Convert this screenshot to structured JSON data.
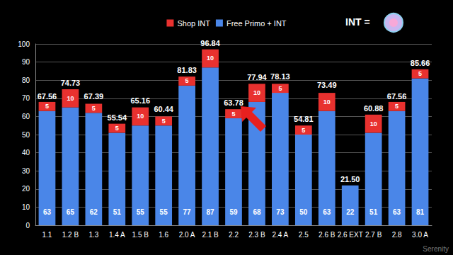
{
  "chart_data": {
    "type": "bar",
    "stacked": true,
    "data_labels": true,
    "grid": true,
    "legend": "top",
    "categories": [
      "1.1",
      "1.2 B",
      "1.3",
      "1.4 A",
      "1.5 B",
      "1.6",
      "2.0 A",
      "2.1 B",
      "2.2",
      "2.3 B",
      "2.4 A",
      "2.5",
      "2.6 B",
      "2.6 EXT",
      "2.7 B",
      "2.8",
      "3.0 A"
    ],
    "series": [
      {
        "name": "Free Primo + INT",
        "color": "#4a86e8",
        "values": [
          63,
          65,
          62,
          51,
          55,
          55,
          77,
          87,
          59,
          68,
          73,
          50,
          63,
          22,
          51,
          63,
          81
        ]
      },
      {
        "name": "Shop INT",
        "color": "#e8312f",
        "values": [
          5,
          10,
          5,
          5,
          10,
          5,
          5,
          10,
          5,
          10,
          5,
          5,
          10,
          null,
          10,
          5,
          5
        ]
      }
    ],
    "totals": [
      67.56,
      74.73,
      67.39,
      55.54,
      65.16,
      60.44,
      81.83,
      96.84,
      63.78,
      77.94,
      78.13,
      54.81,
      73.49,
      21.5,
      60.88,
      67.56,
      85.66
    ],
    "total_labels": [
      "67.56",
      "74.73",
      "67.39",
      "55.54",
      "65.16",
      "60.44",
      "81.83",
      "96.84",
      "63.78",
      "77.94",
      "78.13",
      "54.81",
      "73.49",
      "21.50",
      "60.88",
      "67.56",
      "85.66"
    ],
    "ylim": [
      0,
      100
    ],
    "yticks": [
      0,
      10,
      20,
      30,
      40,
      50,
      60,
      70,
      80,
      90,
      100
    ],
    "annotations": [
      "INT =",
      "Serenity"
    ]
  }
}
